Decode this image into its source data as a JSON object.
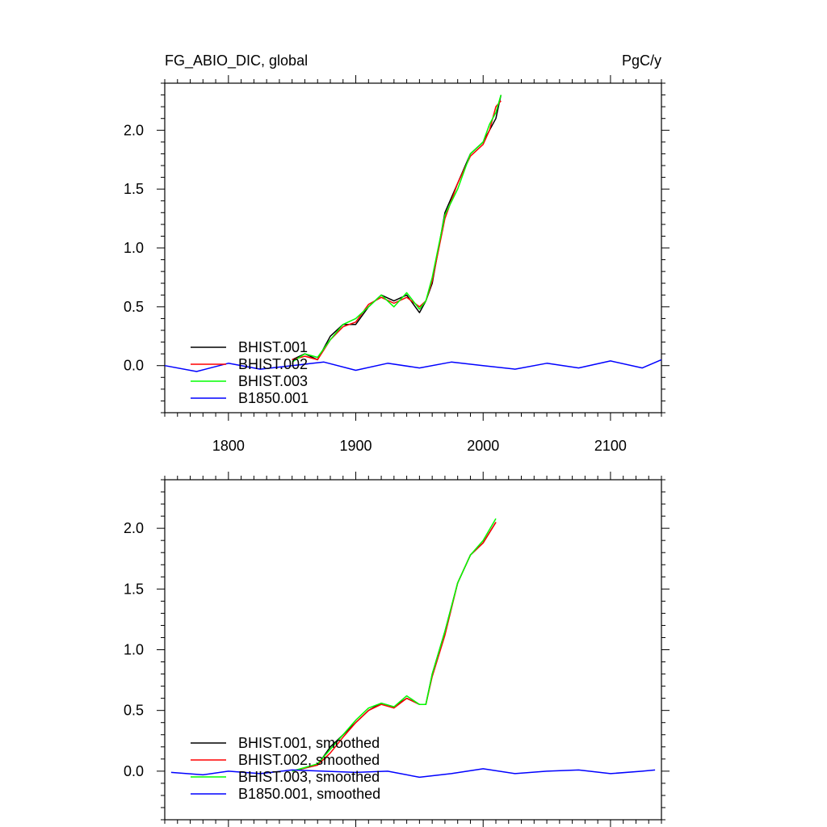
{
  "header": {
    "title": "FG_ABIO_DIC, global",
    "units": "PgC/y"
  },
  "colors": {
    "BHIST.001": "#000000",
    "BHIST.002": "#ff0000",
    "BHIST.003": "#00ff00",
    "B1850.001": "#0000ff",
    "axis": "#000000",
    "background": "#ffffff"
  },
  "chart_data": [
    {
      "type": "line",
      "title": "FG_ABIO_DIC, global",
      "units": "PgC/y",
      "xlim": [
        1750,
        2140
      ],
      "ylim": [
        -0.4,
        2.4
      ],
      "x_ticks": [
        1800,
        1900,
        2000,
        2100
      ],
      "x_tick_labels": [
        "1800",
        "1900",
        "2000",
        "2100"
      ],
      "y_ticks": [
        0.0,
        0.5,
        1.0,
        1.5,
        2.0
      ],
      "y_tick_labels": [
        "0.0",
        "0.5",
        "1.0",
        "1.5",
        "2.0"
      ],
      "grid": false,
      "legend_position": "bottom-left",
      "legend": [
        "BHIST.001",
        "BHIST.002",
        "BHIST.003",
        "B1850.001"
      ],
      "series": [
        {
          "name": "BHIST.001",
          "x": [
            1850,
            1860,
            1870,
            1880,
            1890,
            1900,
            1910,
            1920,
            1930,
            1940,
            1950,
            1955,
            1960,
            1970,
            1980,
            1990,
            2000,
            2005,
            2010,
            2014
          ],
          "y": [
            0.05,
            0.1,
            0.05,
            0.25,
            0.35,
            0.35,
            0.5,
            0.6,
            0.55,
            0.6,
            0.45,
            0.55,
            0.7,
            1.3,
            1.55,
            1.8,
            1.9,
            2.0,
            2.1,
            2.3
          ]
        },
        {
          "name": "BHIST.002",
          "x": [
            1850,
            1860,
            1870,
            1880,
            1890,
            1900,
            1910,
            1920,
            1930,
            1940,
            1950,
            1955,
            1960,
            1970,
            1980,
            1990,
            2000,
            2005,
            2010,
            2014
          ],
          "y": [
            0.05,
            0.08,
            0.05,
            0.22,
            0.33,
            0.37,
            0.52,
            0.58,
            0.53,
            0.58,
            0.5,
            0.55,
            0.72,
            1.25,
            1.55,
            1.78,
            1.88,
            2.0,
            2.2,
            2.25
          ]
        },
        {
          "name": "BHIST.003",
          "x": [
            1850,
            1860,
            1870,
            1880,
            1890,
            1900,
            1910,
            1920,
            1930,
            1940,
            1950,
            1955,
            1960,
            1970,
            1980,
            1990,
            2000,
            2005,
            2010,
            2014
          ],
          "y": [
            0.03,
            0.1,
            0.07,
            0.22,
            0.35,
            0.4,
            0.5,
            0.6,
            0.5,
            0.62,
            0.48,
            0.55,
            0.75,
            1.28,
            1.5,
            1.8,
            1.9,
            2.05,
            2.15,
            2.3
          ]
        },
        {
          "name": "B1850.001",
          "x": [
            1750,
            1775,
            1800,
            1825,
            1850,
            1875,
            1900,
            1925,
            1950,
            1975,
            2000,
            2025,
            2050,
            2075,
            2100,
            2125,
            2140
          ],
          "y": [
            0.0,
            -0.05,
            0.02,
            -0.03,
            0.0,
            0.03,
            -0.04,
            0.02,
            -0.02,
            0.03,
            0.0,
            -0.03,
            0.02,
            -0.02,
            0.04,
            -0.02,
            0.05
          ]
        }
      ]
    },
    {
      "type": "line",
      "xlim": [
        1750,
        2140
      ],
      "ylim": [
        -0.4,
        2.4
      ],
      "x_ticks": [
        1800,
        1900,
        2000,
        2100
      ],
      "y_ticks": [
        0.0,
        0.5,
        1.0,
        1.5,
        2.0
      ],
      "y_tick_labels": [
        "0.0",
        "0.5",
        "1.0",
        "1.5",
        "2.0"
      ],
      "grid": false,
      "legend_position": "bottom-left",
      "legend": [
        "BHIST.001, smoothed",
        "BHIST.002, smoothed",
        "BHIST.003, smoothed",
        "B1850.001, smoothed"
      ],
      "series": [
        {
          "name": "BHIST.001, smoothed",
          "x": [
            1850,
            1870,
            1880,
            1890,
            1900,
            1910,
            1920,
            1930,
            1940,
            1950,
            1955,
            1960,
            1970,
            1980,
            1990,
            2000,
            2010
          ],
          "y": [
            0.0,
            0.05,
            0.2,
            0.3,
            0.4,
            0.5,
            0.56,
            0.53,
            0.6,
            0.55,
            0.55,
            0.8,
            1.15,
            1.55,
            1.78,
            1.88,
            2.05
          ]
        },
        {
          "name": "BHIST.002, smoothed",
          "x": [
            1850,
            1870,
            1880,
            1890,
            1900,
            1910,
            1920,
            1930,
            1940,
            1950,
            1955,
            1960,
            1970,
            1980,
            1990,
            2000,
            2010
          ],
          "y": [
            0.0,
            0.05,
            0.15,
            0.28,
            0.4,
            0.5,
            0.55,
            0.52,
            0.6,
            0.55,
            0.55,
            0.78,
            1.12,
            1.55,
            1.78,
            1.88,
            2.05
          ]
        },
        {
          "name": "BHIST.003, smoothed",
          "x": [
            1850,
            1870,
            1880,
            1890,
            1900,
            1910,
            1920,
            1930,
            1940,
            1950,
            1955,
            1960,
            1970,
            1980,
            1990,
            2000,
            2010
          ],
          "y": [
            0.0,
            0.06,
            0.18,
            0.3,
            0.42,
            0.52,
            0.56,
            0.53,
            0.62,
            0.55,
            0.55,
            0.8,
            1.15,
            1.55,
            1.78,
            1.9,
            2.08
          ]
        },
        {
          "name": "B1850.001, smoothed",
          "x": [
            1755,
            1780,
            1800,
            1825,
            1850,
            1875,
            1900,
            1925,
            1950,
            1975,
            2000,
            2025,
            2050,
            2075,
            2100,
            2125,
            2135
          ],
          "y": [
            -0.01,
            -0.03,
            0.0,
            -0.02,
            0.01,
            0.0,
            -0.01,
            0.0,
            -0.05,
            -0.02,
            0.02,
            -0.02,
            0.0,
            0.01,
            -0.02,
            0.0,
            0.01
          ]
        }
      ]
    }
  ]
}
